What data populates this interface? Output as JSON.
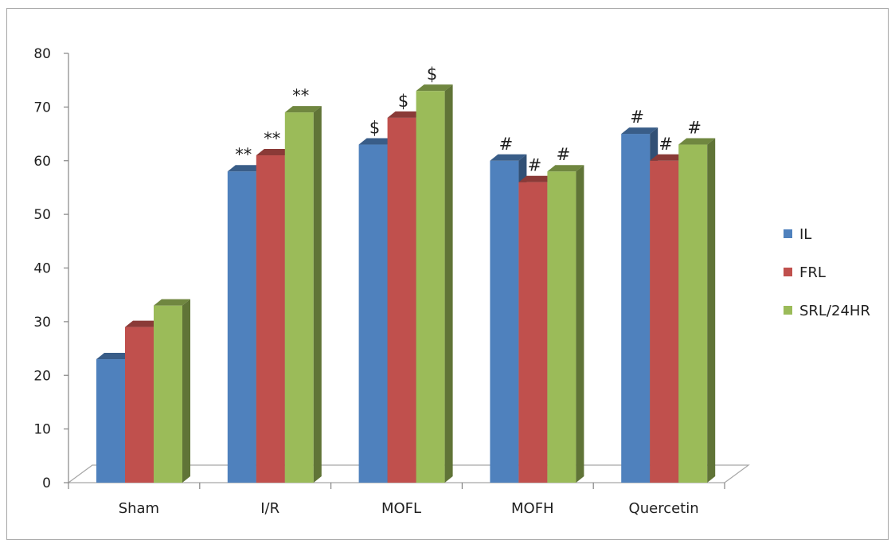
{
  "chart_data": {
    "type": "bar",
    "categories": [
      "Sham",
      "I/R",
      "MOFL",
      "MOFH",
      "Quercetin"
    ],
    "series": [
      {
        "name": "IL",
        "values": [
          23,
          58,
          63,
          60,
          65
        ],
        "color": "#4f81bd"
      },
      {
        "name": "FRL",
        "values": [
          29,
          61,
          68,
          56,
          60
        ],
        "color": "#c0504d"
      },
      {
        "name": "SRL/24HR",
        "values": [
          33,
          69,
          73,
          58,
          63
        ],
        "color": "#9bbb59"
      }
    ],
    "annotations": [
      [
        "",
        "",
        ""
      ],
      [
        "**",
        "**",
        "**"
      ],
      [
        "$",
        "$",
        "$"
      ],
      [
        "#",
        "#",
        "#"
      ],
      [
        "#",
        "#",
        "#"
      ]
    ],
    "ylim": [
      0,
      80
    ],
    "yticks": [
      0,
      10,
      20,
      30,
      40,
      50,
      60,
      70,
      80
    ],
    "legend_position": "right",
    "grid": false,
    "style": "3d-clustered-column"
  }
}
